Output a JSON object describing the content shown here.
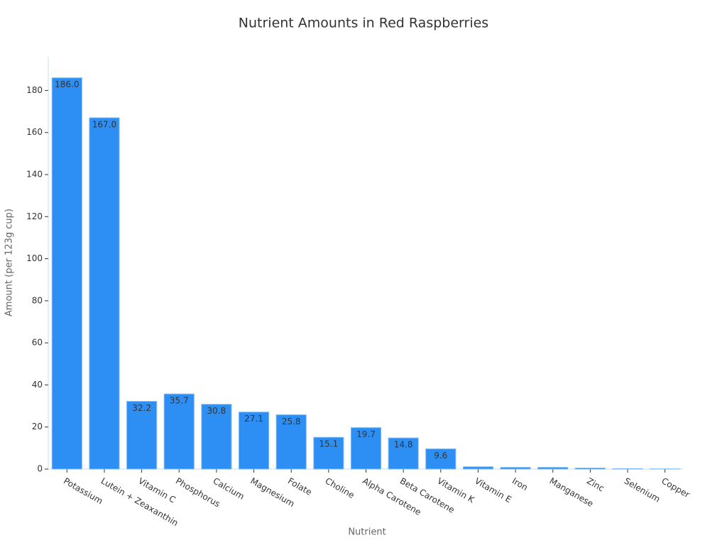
{
  "chart_data": {
    "type": "bar",
    "title": "Nutrient Amounts in Red Raspberries",
    "x_label": "Nutrient",
    "y_label": "Amount (per 123g cup)",
    "categories": [
      "Potassium",
      "Lutein + Zeaxanthin",
      "Vitamin C",
      "Phosphorus",
      "Calcium",
      "Magnesium",
      "Folate",
      "Choline",
      "Alpha Carotene",
      "Beta Carotene",
      "Vitamin K",
      "Vitamin E",
      "Iron",
      "Manganese",
      "Zinc",
      "Selenium",
      "Copper"
    ],
    "values": [
      186,
      167,
      32.2,
      35.7,
      30.8,
      27.1,
      25.8,
      15.1,
      19.7,
      14.8,
      9.6,
      1.1,
      0.8,
      0.8,
      0.5,
      0.2,
      0.1
    ],
    "value_labels": [
      "186.0",
      "167.0",
      "32.2",
      "35.7",
      "30.8",
      "27.1",
      "25.8",
      "15.1",
      "19.7",
      "14.8",
      "9.6",
      null,
      null,
      null,
      null,
      null,
      null
    ],
    "color": "#2d8ff3",
    "ylim": [
      0,
      196
    ],
    "yticks": [
      0,
      20,
      40,
      60,
      80,
      100,
      120,
      140,
      160,
      180
    ]
  }
}
